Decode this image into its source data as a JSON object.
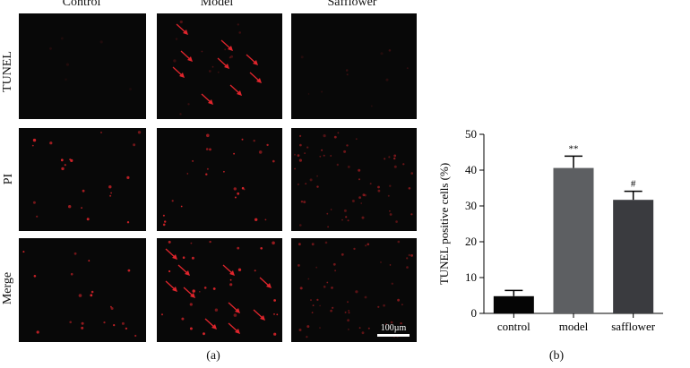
{
  "figure": {
    "columns": [
      "Control",
      "Model",
      "Safflower"
    ],
    "rows": [
      "TUNEL",
      "PI",
      "Merge"
    ],
    "scale_bar": "100µm",
    "panel_a_label": "(a)",
    "panel_b_label": "(b)"
  },
  "colors": {
    "panel_background": "#080808",
    "cell_red": "#d8242a",
    "arrow_red": "#e0252c",
    "bar_control": "#050505",
    "bar_model": "#5d5f62",
    "bar_safflower": "#3a3b3f"
  },
  "chart_data": {
    "type": "bar",
    "categories": [
      "control",
      "model",
      "safflower"
    ],
    "values": [
      4.8,
      40.6,
      31.7
    ],
    "errors": [
      1.6,
      3.3,
      2.4
    ],
    "annotations": [
      "",
      "**",
      "#"
    ],
    "title": "",
    "xlabel": "",
    "ylabel": "TUNEL positive cells (%)",
    "ylim": [
      0,
      50
    ],
    "yticks": [
      0,
      10,
      20,
      30,
      40,
      50
    ],
    "grid": false
  }
}
